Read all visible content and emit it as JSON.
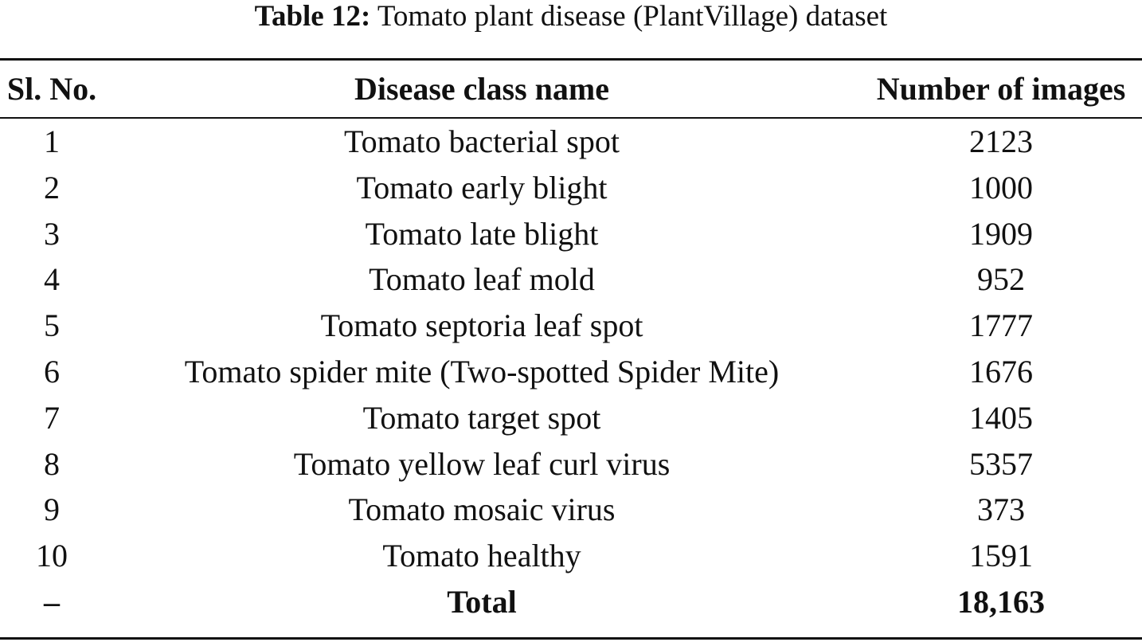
{
  "caption": {
    "label": "Table 12:",
    "text": "Tomato plant disease (PlantVillage) dataset"
  },
  "table": {
    "headers": [
      "Sl. No.",
      "Disease class name",
      "Number of images"
    ],
    "rows": [
      {
        "no": "1",
        "name": "Tomato bacterial spot",
        "count": "2123"
      },
      {
        "no": "2",
        "name": "Tomato early blight",
        "count": "1000"
      },
      {
        "no": "3",
        "name": "Tomato late blight",
        "count": "1909"
      },
      {
        "no": "4",
        "name": "Tomato leaf mold",
        "count": "952"
      },
      {
        "no": "5",
        "name": "Tomato septoria leaf spot",
        "count": "1777"
      },
      {
        "no": "6",
        "name": "Tomato spider mite (Two-spotted Spider Mite)",
        "count": "1676"
      },
      {
        "no": "7",
        "name": "Tomato target spot",
        "count": "1405"
      },
      {
        "no": "8",
        "name": "Tomato yellow leaf curl virus",
        "count": "5357"
      },
      {
        "no": "9",
        "name": "Tomato mosaic virus",
        "count": "373"
      },
      {
        "no": "10",
        "name": "Tomato healthy",
        "count": "1591"
      }
    ],
    "total": {
      "no": "–",
      "name": "Total",
      "count": "18,163"
    }
  }
}
